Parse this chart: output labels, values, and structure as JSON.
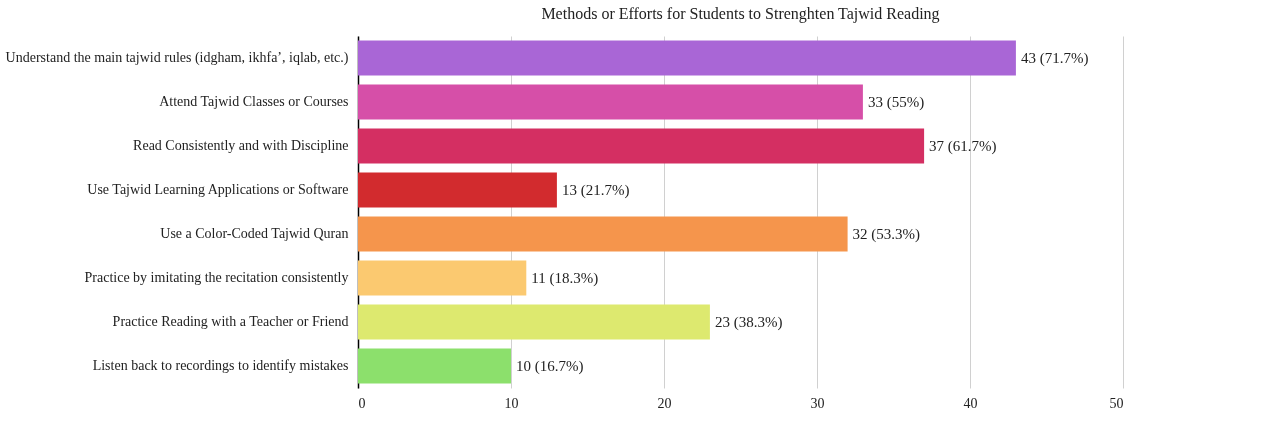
{
  "chart_data": {
    "type": "bar",
    "orientation": "horizontal",
    "title": "Methods or Efforts for Students to Strenghten Tajwid Reading",
    "categories": [
      "Understand the main tajwid rules (idgham, ikhfa’, iqlab, etc.)",
      "Attend Tajwid Classes or Courses",
      "Read Consistently and with Discipline",
      "Use Tajwid Learning Applications or Software",
      "Use a Color-Coded Tajwid Quran",
      "Practice by imitating the recitation consistently",
      "Practice Reading with a Teacher or Friend",
      "Listen back to recordings to identify mistakes"
    ],
    "values": [
      43,
      33,
      37,
      13,
      32,
      11,
      23,
      10
    ],
    "colors": [
      "#a966d6",
      "#d64fa8",
      "#d42f62",
      "#d22b2e",
      "#f5954c",
      "#fbc970",
      "#dde96f",
      "#8ce06c"
    ],
    "value_labels": [
      "43 (71.7%)",
      "33 (55%)",
      "37 (61.7%)",
      "13 (21.7%)",
      "32 (53.3%)",
      "11 (18.3%)",
      "23 (38.3%)",
      "10 (16.7%)"
    ],
    "xlim": [
      0,
      50
    ],
    "xticks": [
      0,
      10,
      20,
      30,
      40,
      50
    ],
    "grid": "x"
  }
}
